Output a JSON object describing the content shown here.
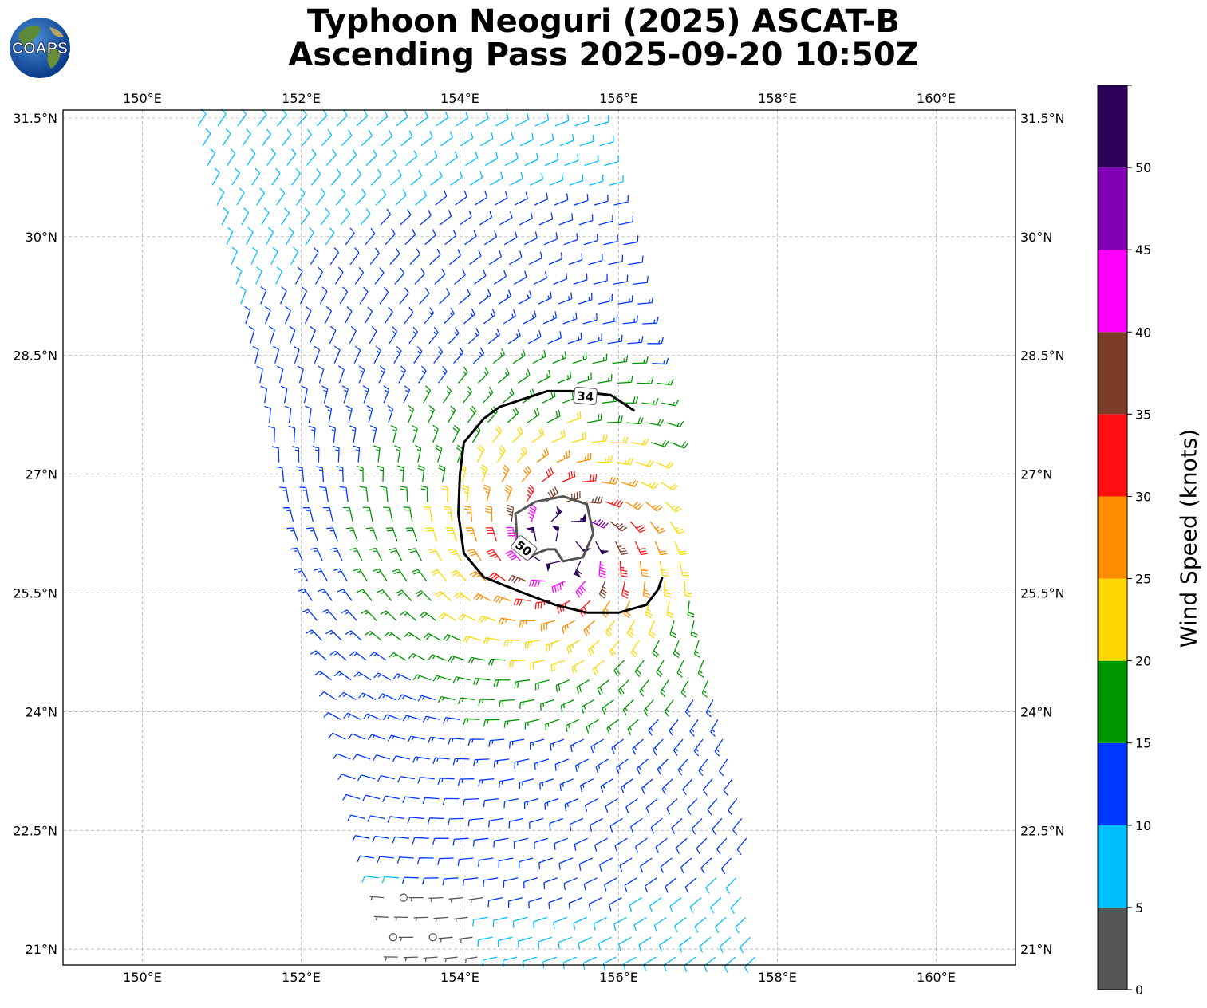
{
  "title": {
    "line1": "Typhoon Neoguri (2025) ASCAT-B",
    "line2": "Ascending Pass 2025-09-20 10:50Z"
  },
  "logo": {
    "text": "COAPS",
    "icon": "globe-logo-icon"
  },
  "map": {
    "lon_range": [
      149,
      161
    ],
    "lat_range": [
      20.8,
      31.6
    ],
    "lon_ticks": [
      {
        "value": 150,
        "label": "150°E"
      },
      {
        "value": 152,
        "label": "152°E"
      },
      {
        "value": 154,
        "label": "154°E"
      },
      {
        "value": 156,
        "label": "156°E"
      },
      {
        "value": 158,
        "label": "158°E"
      },
      {
        "value": 160,
        "label": "160°E"
      }
    ],
    "lat_ticks": [
      {
        "value": 31.5,
        "label": "31.5°N"
      },
      {
        "value": 30,
        "label": "30°N"
      },
      {
        "value": 28.5,
        "label": "28.5°N"
      },
      {
        "value": 27,
        "label": "27°N"
      },
      {
        "value": 25.5,
        "label": "25.5°N"
      },
      {
        "value": 24,
        "label": "24°N"
      },
      {
        "value": 22.5,
        "label": "22.5°N"
      },
      {
        "value": 21,
        "label": "21°N"
      }
    ],
    "grid": true,
    "storm_center": {
      "lon": 155.3,
      "lat": 26.1
    },
    "contours": [
      {
        "level": 34,
        "label": "34",
        "color": "#000000"
      },
      {
        "level": 50,
        "label": "50",
        "color": "#555555"
      }
    ]
  },
  "colorbar": {
    "label": "Wind Speed (knots)",
    "bins": [
      {
        "from": 0,
        "to": 5,
        "color": "#555555"
      },
      {
        "from": 5,
        "to": 10,
        "color": "#00bfff"
      },
      {
        "from": 10,
        "to": 15,
        "color": "#0037ff"
      },
      {
        "from": 15,
        "to": 20,
        "color": "#009600"
      },
      {
        "from": 20,
        "to": 25,
        "color": "#ffd700"
      },
      {
        "from": 25,
        "to": 30,
        "color": "#ff8c00"
      },
      {
        "from": 30,
        "to": 35,
        "color": "#ff0f0f"
      },
      {
        "from": 35,
        "to": 40,
        "color": "#7d3c28"
      },
      {
        "from": 40,
        "to": 45,
        "color": "#ff00ff"
      },
      {
        "from": 45,
        "to": 50,
        "color": "#8200b4"
      },
      {
        "from": 50,
        "to": 55,
        "color": "#2d005a"
      }
    ],
    "tick_labels": [
      "0",
      "5",
      "10",
      "15",
      "20",
      "25",
      "30",
      "35",
      "40",
      "45",
      "50"
    ]
  }
}
